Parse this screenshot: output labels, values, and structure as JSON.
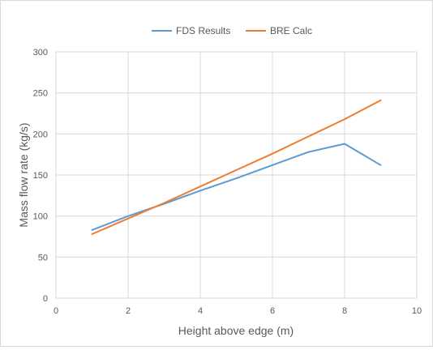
{
  "chart_data": {
    "type": "line",
    "title": "",
    "xlabel": "Height above edge (m)",
    "ylabel": "Mass flow rate (kg/s)",
    "xlim": [
      0,
      10
    ],
    "ylim": [
      0,
      300
    ],
    "xticks": [
      0,
      2,
      4,
      6,
      8,
      10
    ],
    "yticks": [
      0,
      50,
      100,
      150,
      200,
      250,
      300
    ],
    "grid": true,
    "legend_position": "top",
    "series": [
      {
        "name": "FDS Results",
        "color": "#5b9bd5",
        "points": [
          [
            1,
            83
          ],
          [
            2,
            100
          ],
          [
            3,
            115
          ],
          [
            4,
            131
          ],
          [
            5,
            146
          ],
          [
            6,
            162
          ],
          [
            7,
            178
          ],
          [
            8,
            188
          ],
          [
            9,
            162
          ]
        ]
      },
      {
        "name": "BRE Calc",
        "color": "#ed7d31",
        "points": [
          [
            1,
            78
          ],
          [
            2,
            97
          ],
          [
            3,
            116
          ],
          [
            4,
            136
          ],
          [
            5,
            156
          ],
          [
            6,
            176
          ],
          [
            7,
            197
          ],
          [
            8,
            218
          ],
          [
            9,
            241
          ]
        ]
      }
    ]
  }
}
